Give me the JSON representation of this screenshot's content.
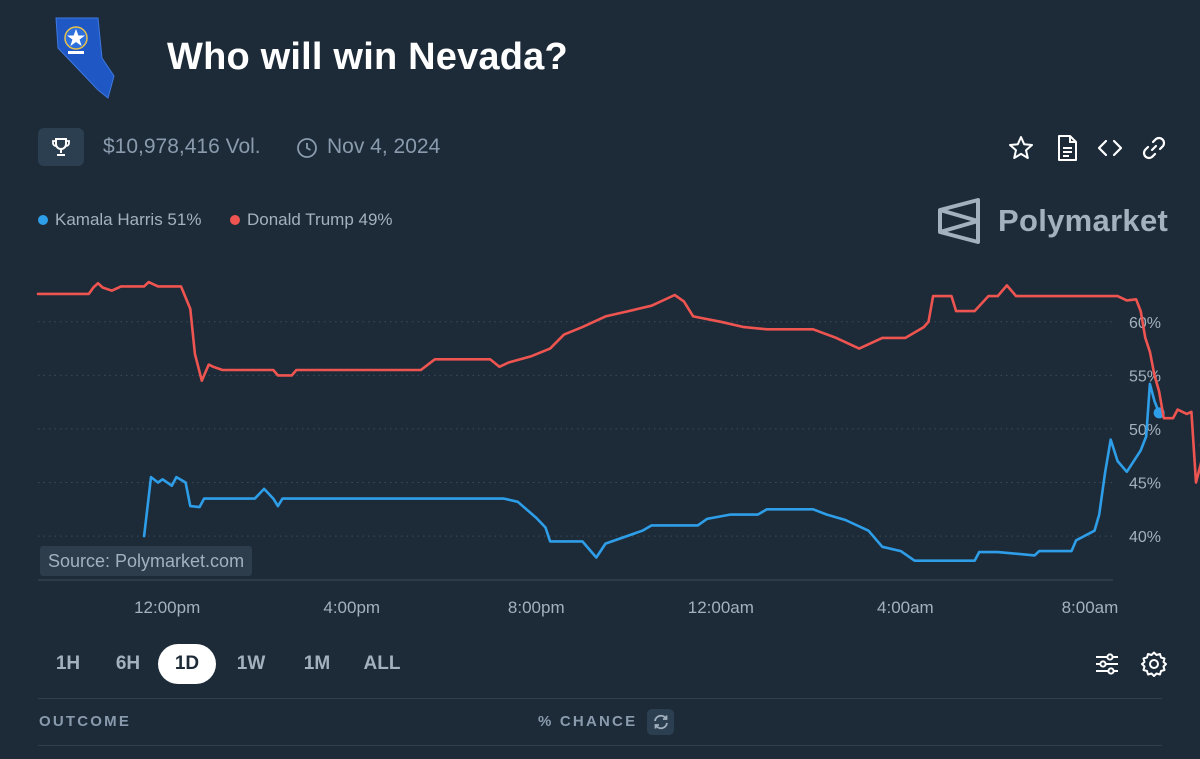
{
  "header": {
    "title": "Who will win Nevada?",
    "state_icon": "nevada-state-flag-icon"
  },
  "meta": {
    "volume": "$10,978,416 Vol.",
    "date": "Nov 4, 2024",
    "icons": [
      "trophy-icon",
      "clock-icon",
      "star-icon",
      "document-icon",
      "code-icon",
      "link-icon"
    ]
  },
  "legend": {
    "harris": "Kamala Harris 51%",
    "trump": "Donald Trump 49%"
  },
  "brand": {
    "name": "Polymarket"
  },
  "source": "Source: Polymarket.com",
  "colors": {
    "harris": "#2e9ee8",
    "trump": "#ee5450",
    "background": "#1d2b39"
  },
  "time_ranges": [
    {
      "label": "1H",
      "active": false
    },
    {
      "label": "6H",
      "active": false
    },
    {
      "label": "1D",
      "active": true
    },
    {
      "label": "1W",
      "active": false
    },
    {
      "label": "1M",
      "active": false
    },
    {
      "label": "ALL",
      "active": false
    }
  ],
  "table": {
    "outcome_header": "OUTCOME",
    "chance_header": "% CHANCE"
  },
  "chart_data": {
    "type": "line",
    "x_unit": "hours",
    "x_ticks": [
      {
        "label": "12:00pm",
        "x": 12
      },
      {
        "label": "4:00pm",
        "x": 16
      },
      {
        "label": "8:00pm",
        "x": 20
      },
      {
        "label": "12:00am",
        "x": 24
      },
      {
        "label": "4:00am",
        "x": 28
      },
      {
        "label": "8:00am",
        "x": 32
      }
    ],
    "y_ticks": [
      {
        "label": "40%",
        "y": 40
      },
      {
        "label": "45%",
        "y": 45
      },
      {
        "label": "50%",
        "y": 50
      },
      {
        "label": "55%",
        "y": 55
      },
      {
        "label": "60%",
        "y": 60
      }
    ],
    "xlim": [
      9.2,
      32.5
    ],
    "ylim": [
      35.9,
      63.9
    ],
    "grid": true,
    "legend_position": "top-left",
    "series": [
      {
        "name": "Kamala Harris",
        "color": "#2e9ee8",
        "points": [
          [
            11.5,
            40
          ],
          [
            11.65,
            45.5
          ],
          [
            11.8,
            45
          ],
          [
            11.9,
            45.3
          ],
          [
            12.1,
            44.7
          ],
          [
            12.2,
            45.5
          ],
          [
            12.4,
            45
          ],
          [
            12.5,
            42.8
          ],
          [
            12.7,
            42.7
          ],
          [
            12.8,
            43.5
          ],
          [
            13.9,
            43.5
          ],
          [
            14.1,
            44.4
          ],
          [
            14.3,
            43.5
          ],
          [
            14.4,
            42.8
          ],
          [
            14.5,
            43.5
          ],
          [
            19.3,
            43.5
          ],
          [
            19.6,
            43.2
          ],
          [
            20,
            41.7
          ],
          [
            20.2,
            40.8
          ],
          [
            20.3,
            39.5
          ],
          [
            21,
            39.5
          ],
          [
            21.3,
            38
          ],
          [
            21.5,
            39.3
          ],
          [
            22.3,
            40.5
          ],
          [
            22.5,
            41
          ],
          [
            23.5,
            41
          ],
          [
            23.7,
            41.6
          ],
          [
            24.2,
            42
          ],
          [
            24.8,
            42
          ],
          [
            25,
            42.5
          ],
          [
            26,
            42.5
          ],
          [
            26.3,
            42
          ],
          [
            26.7,
            41.5
          ],
          [
            27.2,
            40.5
          ],
          [
            27.5,
            39
          ],
          [
            27.9,
            38.6
          ],
          [
            28.2,
            37.7
          ],
          [
            29.5,
            37.7
          ],
          [
            29.6,
            38.5
          ],
          [
            30,
            38.5
          ],
          [
            30.8,
            38.2
          ],
          [
            30.9,
            38.6
          ],
          [
            31.6,
            38.6
          ],
          [
            31.7,
            39.6
          ],
          [
            32.1,
            40.5
          ],
          [
            32.2,
            42
          ],
          [
            32.33,
            46
          ],
          [
            32.45,
            49
          ],
          [
            32.6,
            47
          ],
          [
            32.8,
            46
          ],
          [
            32.95,
            47
          ],
          [
            33.1,
            48
          ],
          [
            33.22,
            49.3
          ],
          [
            33.3,
            54.2
          ],
          [
            33.4,
            52.6
          ],
          [
            33.5,
            51.5
          ]
        ]
      },
      {
        "name": "Donald Trump",
        "color": "#ee5450",
        "points": [
          [
            9.2,
            62.6
          ],
          [
            10.3,
            62.6
          ],
          [
            10.4,
            63.2
          ],
          [
            10.5,
            63.6
          ],
          [
            10.6,
            63.2
          ],
          [
            10.8,
            62.9
          ],
          [
            11,
            63.3
          ],
          [
            11.5,
            63.3
          ],
          [
            11.6,
            63.7
          ],
          [
            11.8,
            63.3
          ],
          [
            12.3,
            63.3
          ],
          [
            12.5,
            61.2
          ],
          [
            12.6,
            57
          ],
          [
            12.75,
            54.5
          ],
          [
            12.9,
            56
          ],
          [
            13,
            55.8
          ],
          [
            13.2,
            55.5
          ],
          [
            14.3,
            55.5
          ],
          [
            14.4,
            55
          ],
          [
            14.7,
            55
          ],
          [
            14.8,
            55.5
          ],
          [
            17.5,
            55.5
          ],
          [
            17.8,
            56.5
          ],
          [
            19,
            56.5
          ],
          [
            19.2,
            55.8
          ],
          [
            19.4,
            56.2
          ],
          [
            19.9,
            56.8
          ],
          [
            20.3,
            57.5
          ],
          [
            20.6,
            58.8
          ],
          [
            21,
            59.5
          ],
          [
            21.5,
            60.5
          ],
          [
            22,
            61
          ],
          [
            22.5,
            61.5
          ],
          [
            23,
            62.5
          ],
          [
            23.2,
            61.9
          ],
          [
            23.4,
            60.5
          ],
          [
            24,
            60
          ],
          [
            24.5,
            59.5
          ],
          [
            25,
            59.3
          ],
          [
            26,
            59.3
          ],
          [
            26.5,
            58.5
          ],
          [
            27,
            57.5
          ],
          [
            27.5,
            58.5
          ],
          [
            28,
            58.5
          ],
          [
            28.2,
            59
          ],
          [
            28.4,
            59.5
          ],
          [
            28.5,
            60
          ],
          [
            28.6,
            62.4
          ],
          [
            29,
            62.4
          ],
          [
            29.1,
            61
          ],
          [
            29.5,
            61
          ],
          [
            29.8,
            62.4
          ],
          [
            30,
            62.4
          ],
          [
            30.2,
            63.4
          ],
          [
            30.4,
            62.4
          ],
          [
            32.6,
            62.4
          ],
          [
            32.8,
            62
          ],
          [
            33,
            62.1
          ],
          [
            33.1,
            61
          ],
          [
            33.2,
            58.5
          ],
          [
            33.3,
            57.2
          ],
          [
            33.4,
            55
          ],
          [
            33.5,
            53.5
          ],
          [
            33.6,
            51
          ],
          [
            33.8,
            51
          ],
          [
            33.9,
            51.8
          ],
          [
            34.1,
            51.4
          ],
          [
            34.2,
            51.6
          ],
          [
            34.3,
            45
          ],
          [
            34.4,
            46.7
          ],
          [
            34.5,
            48.5
          ]
        ]
      }
    ]
  }
}
